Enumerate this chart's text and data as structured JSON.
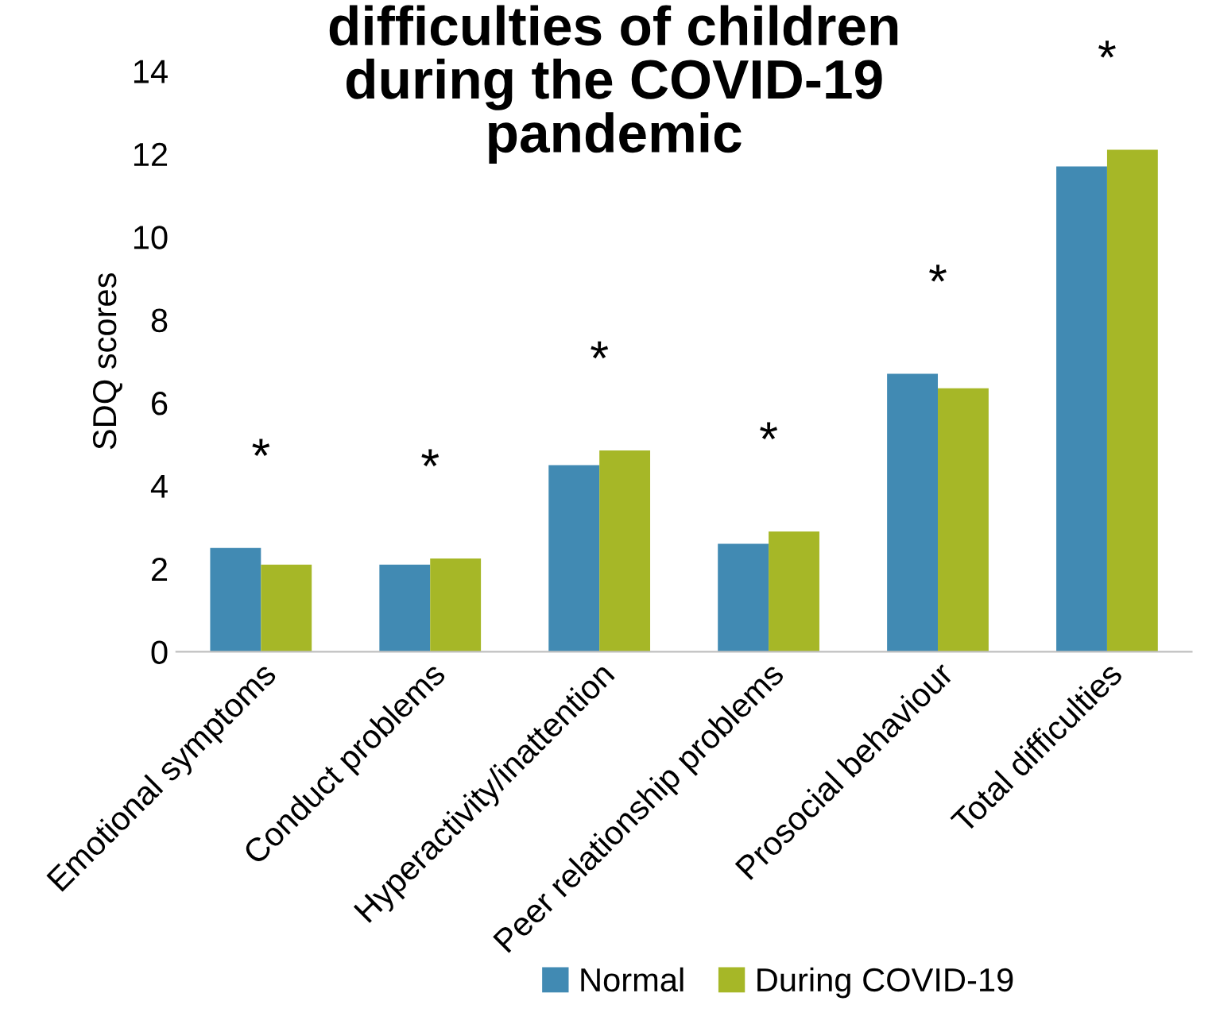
{
  "chart_data": {
    "type": "bar",
    "title": "difficulties of children\nduring the COVID-19\npandemic",
    "ylabel": "SDQ scores",
    "categories": [
      "Emotional symptoms",
      "Conduct problems",
      "Hyperactivity/inattention",
      "Peer relationship problems",
      "Prosocial behaviour",
      "Total difficulties"
    ],
    "series": [
      {
        "name": "Normal",
        "color": "#418ab3",
        "values": [
          2.5,
          2.1,
          4.5,
          2.6,
          6.7,
          11.7
        ]
      },
      {
        "name": "During COVID-19",
        "color": "#a6b727",
        "values": [
          2.1,
          2.25,
          4.85,
          2.9,
          6.35,
          12.1
        ]
      }
    ],
    "ylim": [
      0,
      14
    ],
    "yticks": [
      0,
      2,
      4,
      6,
      8,
      10,
      12,
      14
    ],
    "grid": false,
    "legend": "bottom",
    "annotations": [
      "*",
      "*",
      "*",
      "*",
      "*",
      "*"
    ]
  }
}
